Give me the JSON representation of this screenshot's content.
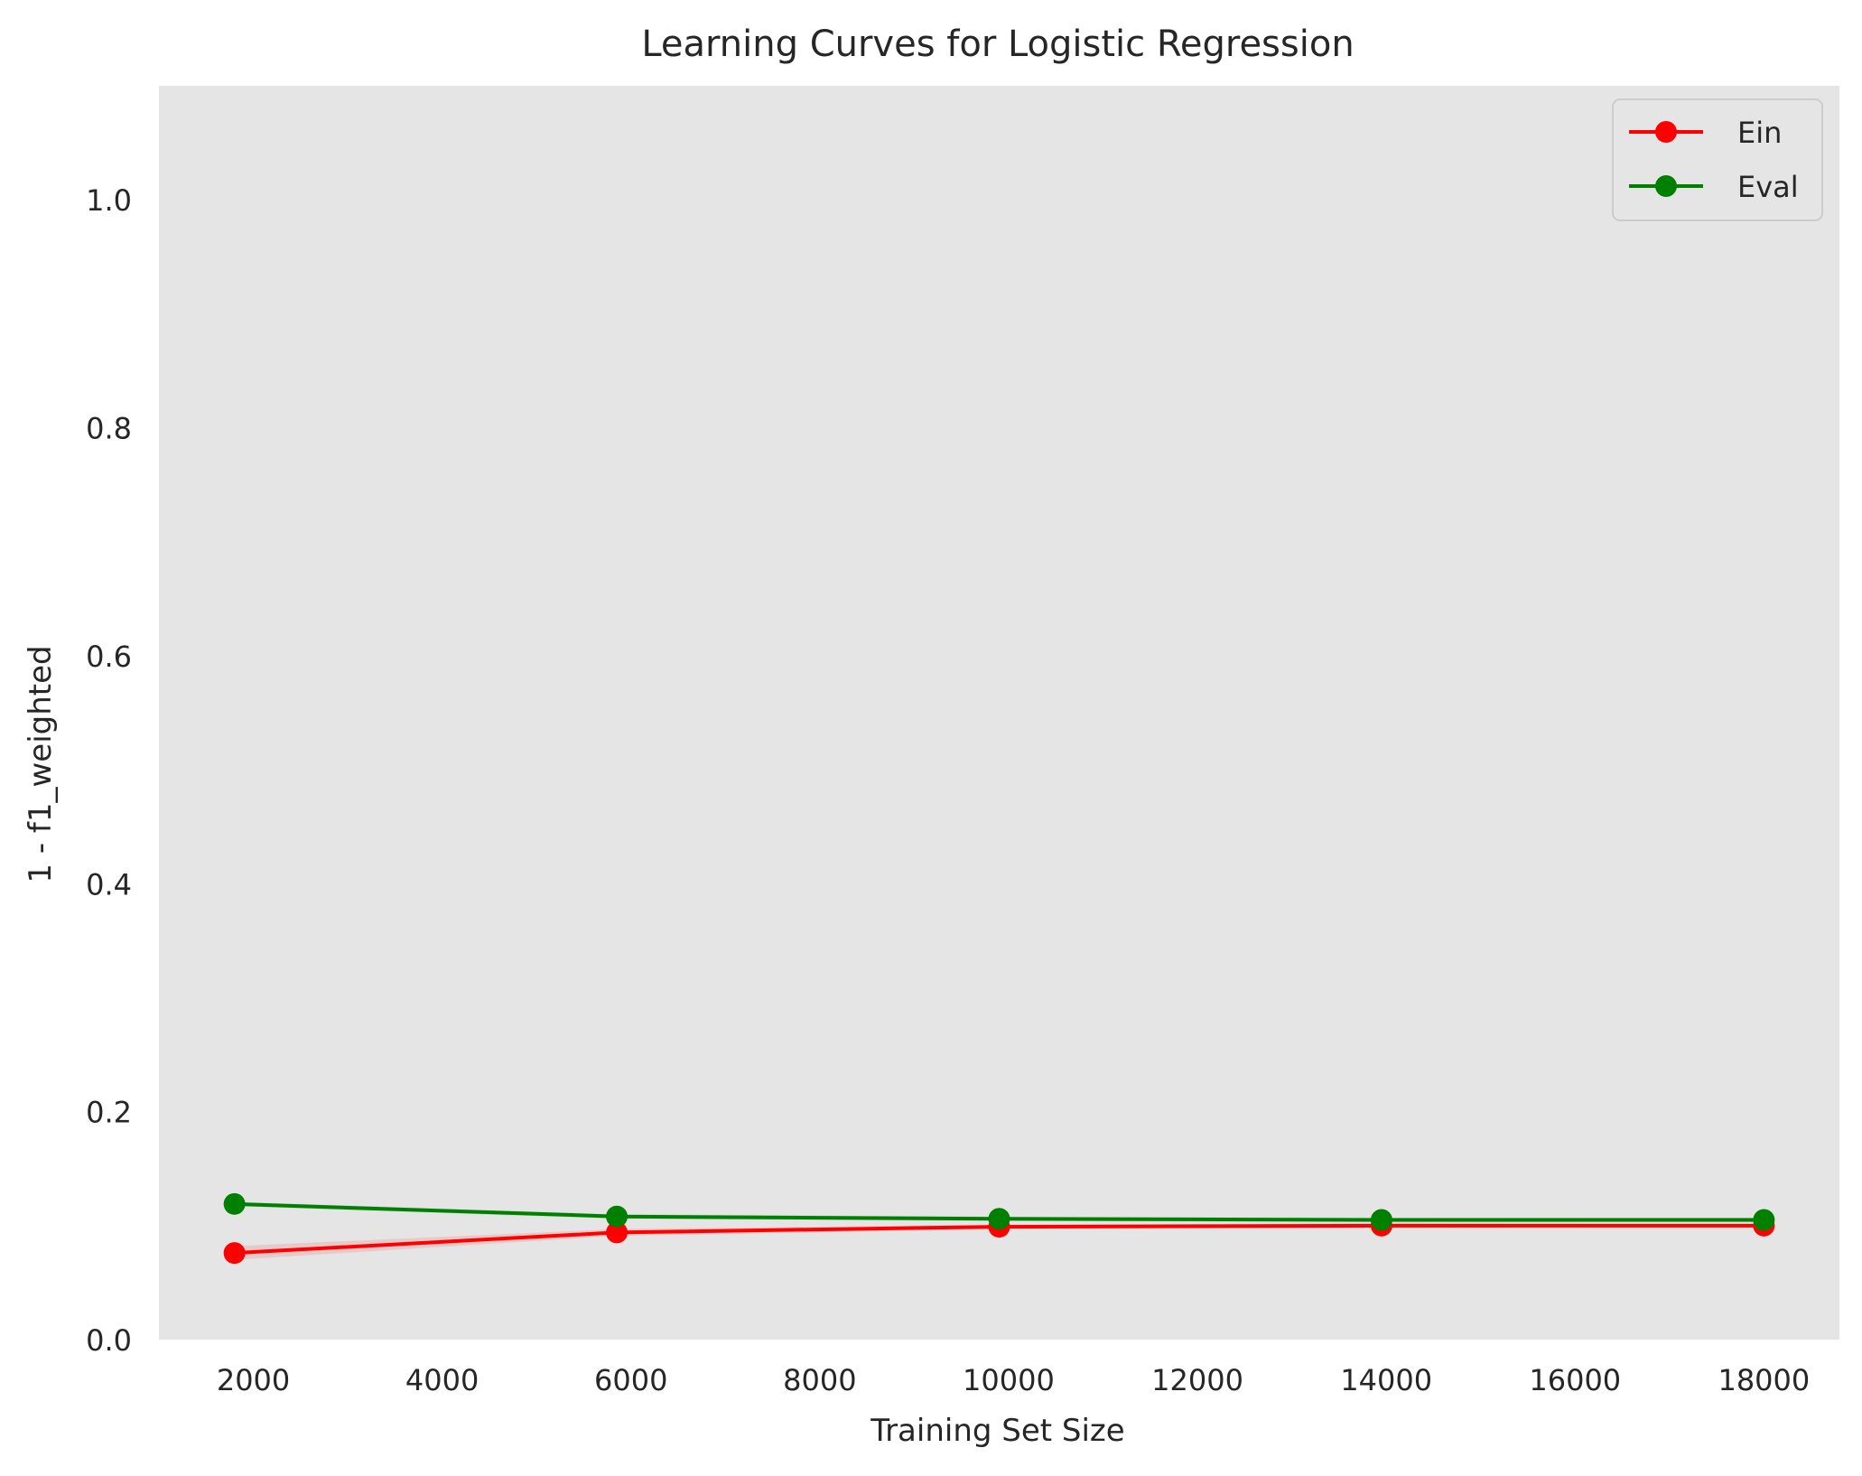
{
  "chart_data": {
    "type": "line",
    "title": "Learning Curves for Logistic Regression",
    "xlabel": "Training Set Size",
    "ylabel": "1 - f1_weighted",
    "xlim": [
      1000,
      18800
    ],
    "ylim": [
      0.0,
      1.1
    ],
    "xticks": [
      2000,
      4000,
      6000,
      8000,
      10000,
      12000,
      14000,
      16000,
      18000
    ],
    "yticks": [
      0.0,
      0.2,
      0.4,
      0.6,
      0.8,
      1.0
    ],
    "ytick_labels": [
      "0.0",
      "0.2",
      "0.4",
      "0.6",
      "0.8",
      "1.0"
    ],
    "grid": false,
    "legend_position": "top-right",
    "background_color": "#e5e5e5",
    "x": [
      1800,
      5850,
      9900,
      13950,
      18000
    ],
    "series": [
      {
        "name": "Ein",
        "color": "#ff0000",
        "values": [
          0.076,
          0.094,
          0.099,
          0.1,
          0.1
        ],
        "band_half_width": [
          0.006,
          0.003,
          0.002,
          0.002,
          0.001
        ]
      },
      {
        "name": "Eval",
        "color": "#008000",
        "values": [
          0.119,
          0.108,
          0.106,
          0.105,
          0.105
        ],
        "band_half_width": [
          0.002,
          0.002,
          0.002,
          0.002,
          0.002
        ]
      }
    ]
  }
}
